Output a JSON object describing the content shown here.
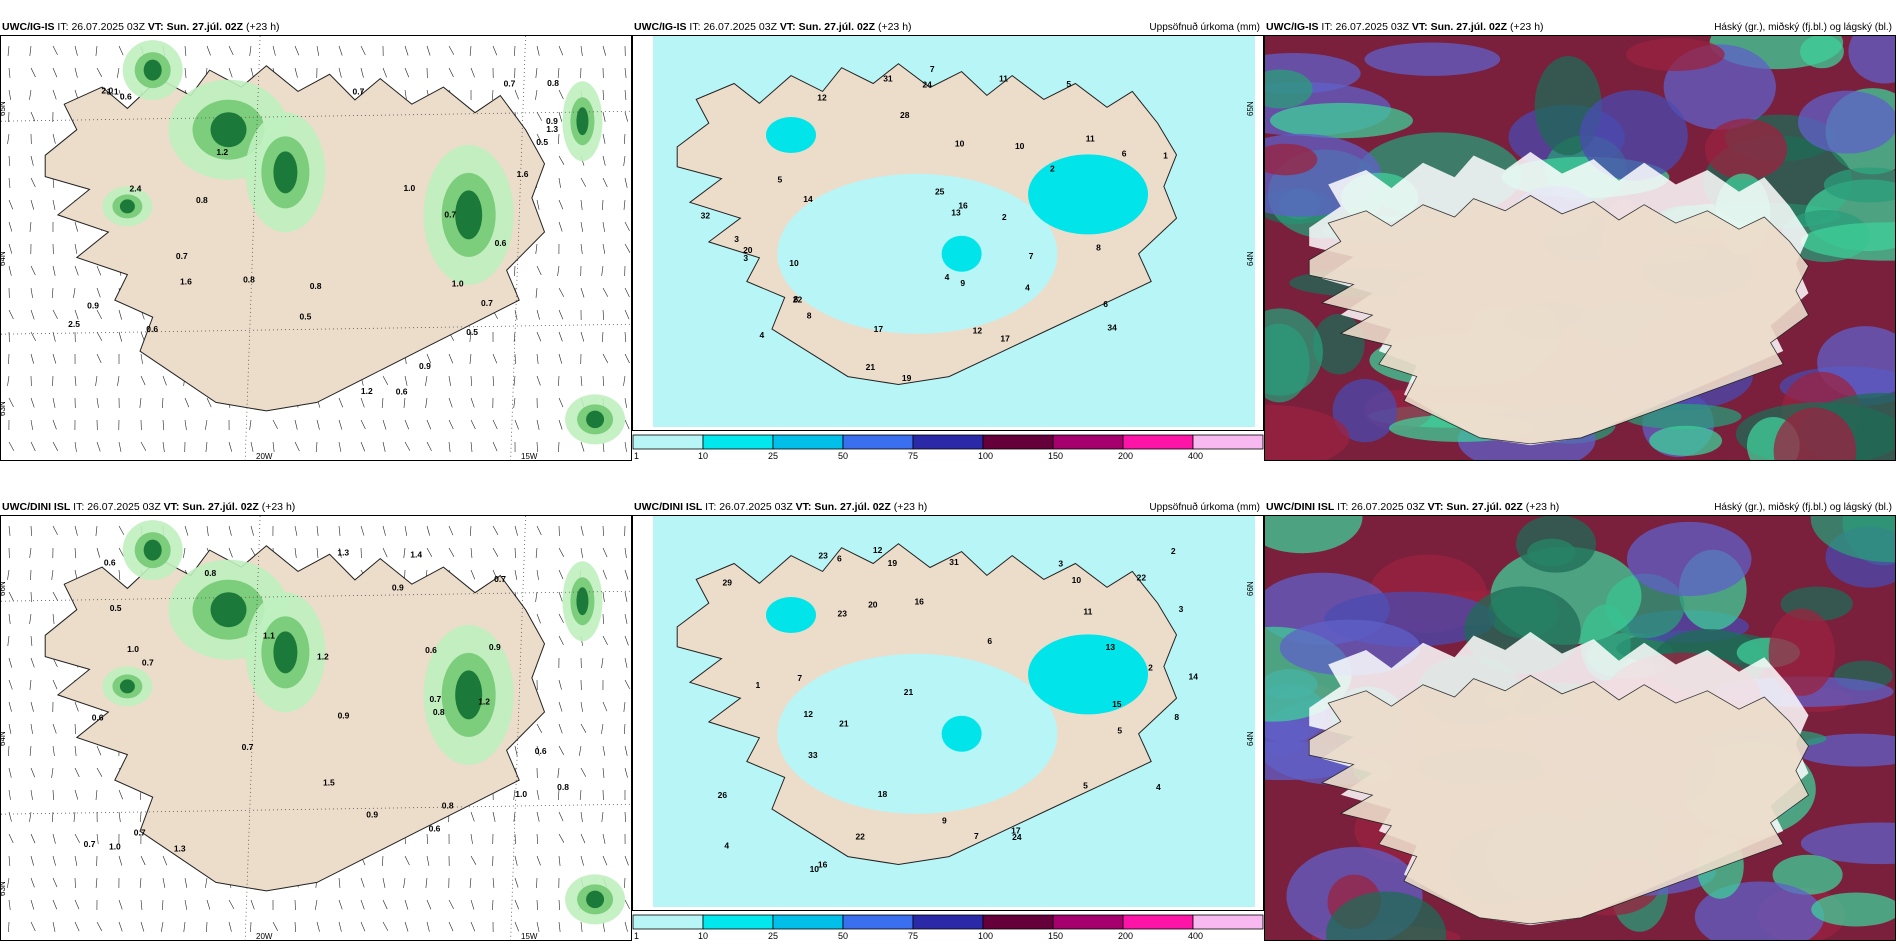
{
  "colors": {
    "land": "#ecdcca",
    "sea": "#ffffff",
    "precip_sea": "#b8f5f6",
    "green_light": "#bff0bf",
    "green_mid": "#7ccd7c",
    "green_dark": "#1b7a3a",
    "cyan": "#00e4ea",
    "maroon": "#7a1f3c",
    "violet": "#6060c8",
    "teal": "#2b9c7a"
  },
  "colorbar": {
    "labels": [
      "1",
      "10",
      "25",
      "50",
      "75",
      "100",
      "150",
      "200",
      "400"
    ],
    "colors": [
      "#b8f5f6",
      "#00e8ee",
      "#00bfe9",
      "#3a6ff0",
      "#2a2aa8",
      "#66003a",
      "#a6006e",
      "#ff14a8",
      "#f8b8f0"
    ]
  },
  "panels": [
    {
      "id": "top-left",
      "model": "UWC/IG-IS",
      "init_label": "IT:",
      "init": "26.07.2025 03Z",
      "vt_label": "VT:",
      "vt": "Sun. 27.júl. 02Z",
      "offset": "(+23 h)",
      "right_title": "",
      "lat_labels": [
        "65N",
        "64N",
        "63N"
      ],
      "lon_labels": [
        "20W",
        "15W"
      ],
      "values": [
        "0.9",
        "1.0",
        "0.7",
        "0.6",
        "0.8",
        "1.2",
        "0.5",
        "2.5",
        "1.6",
        "0.7",
        "0.6",
        "1.1",
        "0.5",
        "0.7",
        "0.8",
        "0.9",
        "0.6",
        "1.0",
        "0.9",
        "0.7",
        "0.8",
        "0.6",
        "0.5",
        "1.2",
        "2.0",
        "2.4",
        "0.7",
        "1.3",
        "1.6",
        "0.8"
      ]
    },
    {
      "id": "top-middle",
      "model": "UWC/IG-IS",
      "init_label": "IT:",
      "init": "26.07.2025 03Z",
      "vt_label": "VT:",
      "vt": "Sun. 27.júl. 02Z",
      "offset": "(+23 h)",
      "right_title": "Uppsöfnuð úrkoma (mm)",
      "lat_labels": [
        "65N",
        "64N"
      ],
      "lon_labels": [],
      "values": [
        "4",
        "5",
        "12",
        "11",
        "9",
        "14",
        "10",
        "8",
        "6",
        "2",
        "3",
        "7",
        "4",
        "13",
        "19",
        "31",
        "34",
        "32",
        "22",
        "21",
        "17",
        "24",
        "28",
        "16",
        "25",
        "17",
        "20",
        "11",
        "10",
        "7",
        "5",
        "8",
        "12",
        "4",
        "6",
        "3",
        "1",
        "2",
        "10",
        "8"
      ]
    },
    {
      "id": "top-right",
      "model": "UWC/IG-IS",
      "init_label": "IT:",
      "init": "26.07.2025 03Z",
      "vt_label": "VT:",
      "vt": "Sun. 27.júl. 02Z",
      "offset": "(+23 h)",
      "right_title": "Háský (gr.), miðský (fj.bl.) og lágský (bl.)",
      "lat_labels": [],
      "lon_labels": [],
      "values": []
    },
    {
      "id": "bottom-left",
      "model": "UWC/DINI ISL",
      "init_label": "IT:",
      "init": "26.07.2025 03Z",
      "vt_label": "VT:",
      "vt": "Sun. 27.júl. 02Z",
      "offset": "(+23 h)",
      "right_title": "",
      "lat_labels": [
        "66N",
        "64N",
        "63N"
      ],
      "lon_labels": [
        "20W",
        "15W"
      ],
      "values": [
        "0.6",
        "1.3",
        "0.8",
        "1.0",
        "0.9",
        "0.7",
        "0.6",
        "0.5",
        "1.0",
        "0.9",
        "0.7",
        "0.8",
        "1.4",
        "0.6",
        "0.7",
        "1.2",
        "1.5",
        "0.9",
        "0.8",
        "0.6",
        "0.7",
        "1.1",
        "0.8",
        "0.9",
        "1.2",
        "0.7",
        "1.0",
        "0.6",
        "0.7",
        "1.3"
      ]
    },
    {
      "id": "bottom-middle",
      "model": "UWC/DINI ISL",
      "init_label": "IT:",
      "init": "26.07.2025 03Z",
      "vt_label": "VT:",
      "vt": "Sun. 27.júl. 02Z",
      "offset": "(+23 h)",
      "right_title": "Uppsöfnuð úrkoma (mm)",
      "lat_labels": [
        "66N",
        "64N"
      ],
      "lon_labels": [],
      "values": [
        "5",
        "3",
        "16",
        "14",
        "10",
        "9",
        "7",
        "6",
        "4",
        "2",
        "12",
        "21",
        "20",
        "18",
        "31",
        "33",
        "29",
        "26",
        "22",
        "24",
        "23",
        "17",
        "21",
        "16",
        "13",
        "10",
        "8",
        "5",
        "3",
        "1",
        "15",
        "19",
        "23",
        "22",
        "12",
        "11",
        "6",
        "7",
        "4",
        "2"
      ]
    },
    {
      "id": "bottom-right",
      "model": "UWC/DINI ISL",
      "init_label": "IT:",
      "init": "26.07.2025 03Z",
      "vt_label": "VT:",
      "vt": "Sun. 27.júl. 02Z",
      "offset": "(+23 h)",
      "right_title": "Háský (gr.), miðský (fj.bl.) og lágský (bl.)",
      "lat_labels": [],
      "lon_labels": [],
      "values": []
    }
  ]
}
